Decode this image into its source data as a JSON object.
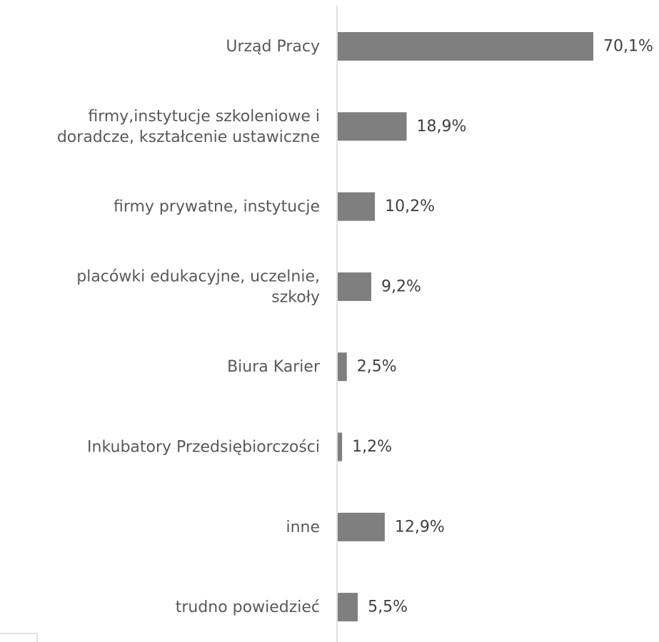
{
  "colors": {
    "bar": "#7f7f7f",
    "axis": "#d9d9d9",
    "category_text": "#595959",
    "value_text": "#404040"
  },
  "chart_data": {
    "type": "bar",
    "orientation": "horizontal",
    "categories": [
      [
        "Urząd Pracy"
      ],
      [
        "firmy,instytucje szkoleniowe i",
        "doradcze, kształcenie ustawiczne"
      ],
      [
        "firmy prywatne, instytucje"
      ],
      [
        "placówki edukacyjne, uczelnie,",
        "szkoły"
      ],
      [
        "Biura Karier"
      ],
      [
        "Inkubatory Przedsiębiorczości"
      ],
      [
        "inne"
      ],
      [
        "trudno powiedzieć"
      ]
    ],
    "values": [
      70.1,
      18.9,
      10.2,
      9.2,
      2.5,
      1.2,
      12.9,
      5.5
    ],
    "value_labels": [
      "70,1%",
      "18,9%",
      "10,2%",
      "9,2%",
      "2,5%",
      "1,2%",
      "12,9%",
      "5,5%"
    ],
    "xlim": [
      0,
      70.1
    ],
    "grid": false,
    "legend": "none",
    "title": "",
    "xlabel": "",
    "ylabel": ""
  }
}
